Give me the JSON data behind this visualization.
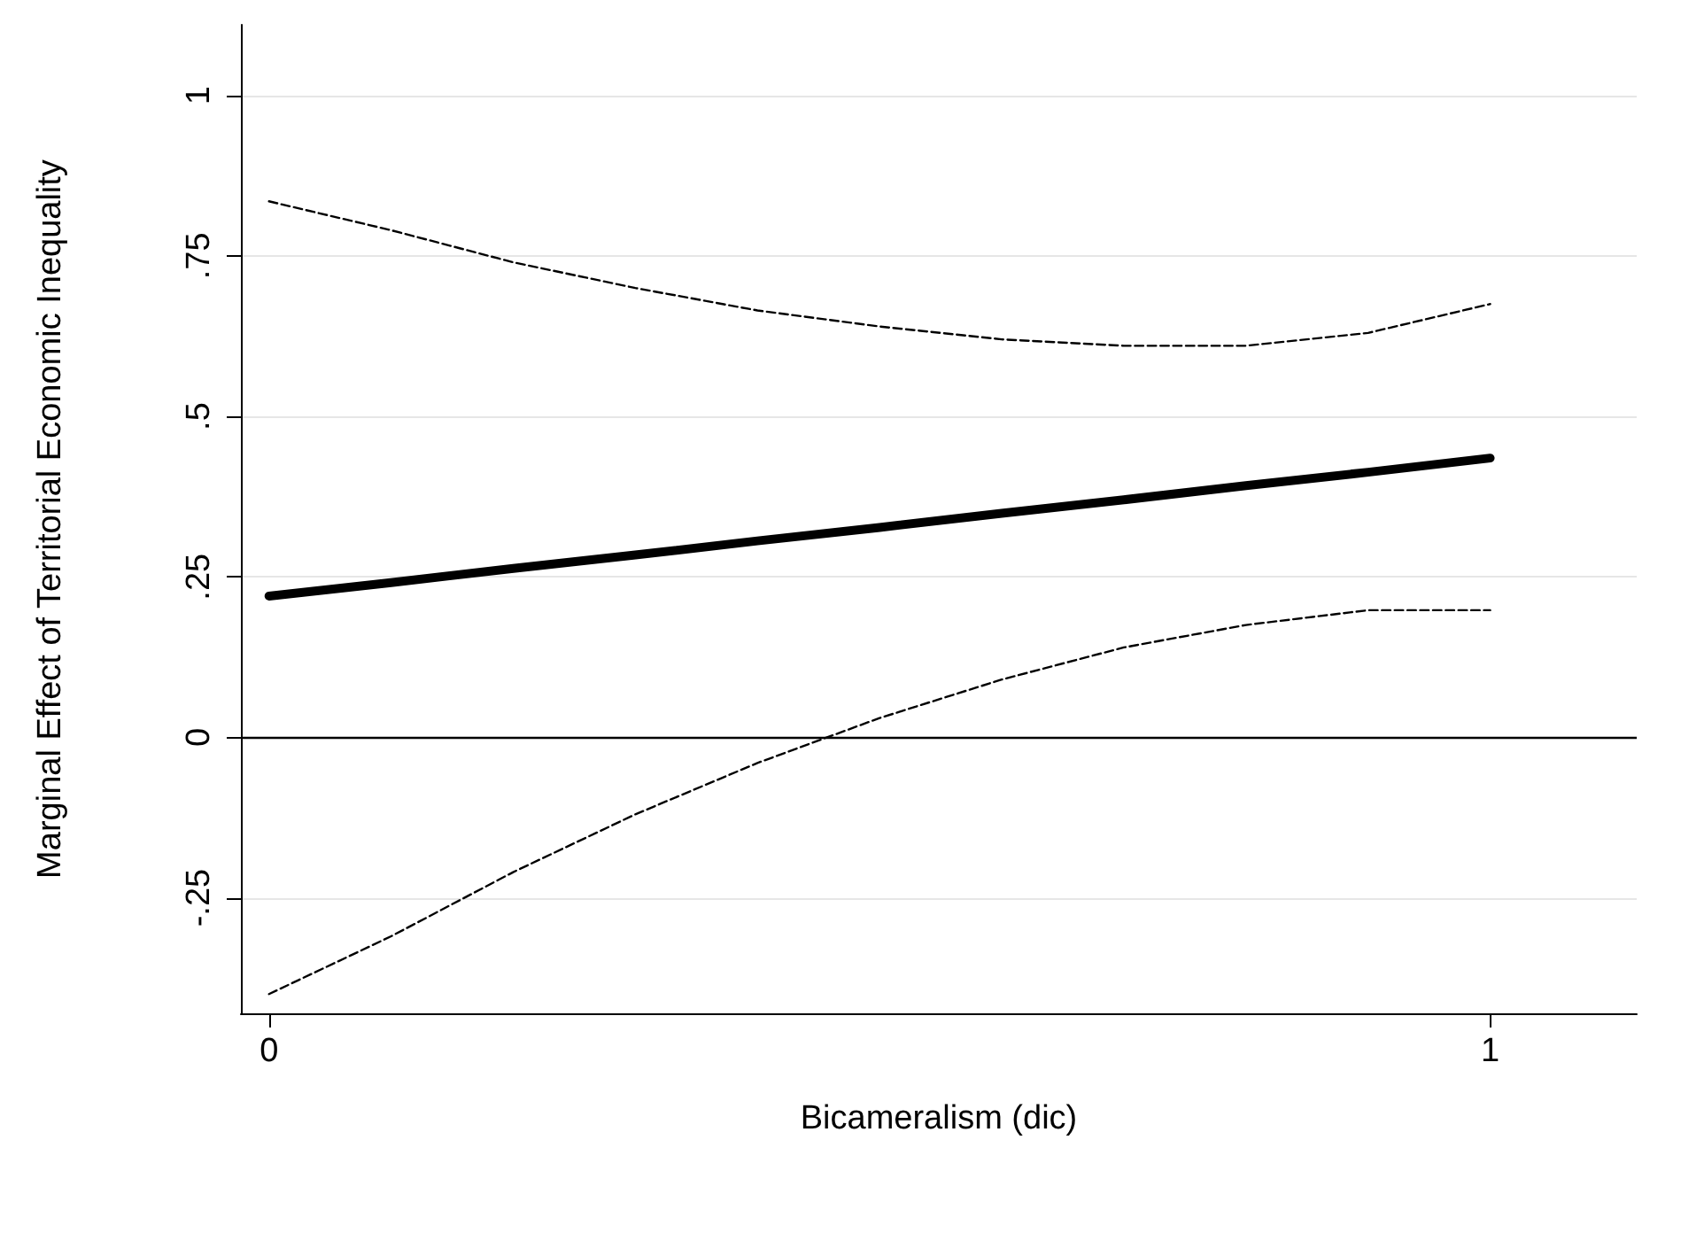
{
  "chart_data": {
    "type": "line",
    "xlabel": "Bicameralism (dic)",
    "ylabel": "Marginal Effect of Territorial Economic Inequality",
    "x": [
      0,
      0.1,
      0.2,
      0.3,
      0.4,
      0.5,
      0.6,
      0.7,
      0.8,
      0.9,
      1
    ],
    "series": [
      {
        "color": "#000000",
        "line_style": "solid",
        "values": [
          0.22,
          0.241,
          0.263,
          0.284,
          0.306,
          0.327,
          0.349,
          0.37,
          0.392,
          0.413,
          0.435
        ]
      },
      {
        "color": "#000000",
        "line_style": "dashed",
        "values": [
          0.835,
          0.79,
          0.74,
          0.7,
          0.665,
          0.64,
          0.62,
          0.61,
          0.61,
          0.63,
          0.675
        ]
      },
      {
        "color": "#000000",
        "line_style": "dashed",
        "values": [
          -0.4,
          -0.31,
          -0.21,
          -0.12,
          -0.04,
          0.03,
          0.09,
          0.14,
          0.175,
          0.198,
          0.198
        ]
      }
    ],
    "xlim": [
      -0.023,
      1.12
    ],
    "xticks": [
      {
        "value": 0,
        "label": "0"
      },
      {
        "value": 1,
        "label": "1"
      }
    ],
    "ylim": [
      -0.43,
      1.11
    ],
    "yticks": [
      {
        "value": -0.25,
        "label": "-.25"
      },
      {
        "value": 0,
        "label": "0"
      },
      {
        "value": 0.25,
        "label": ".25"
      },
      {
        "value": 0.5,
        "label": ".5"
      },
      {
        "value": 0.75,
        "label": ".75"
      },
      {
        "value": 1,
        "label": "1"
      }
    ],
    "ref_lines": [
      {
        "axis": "y",
        "value": 0,
        "color": "#000000"
      }
    ],
    "grid": "y",
    "marker": "none"
  }
}
